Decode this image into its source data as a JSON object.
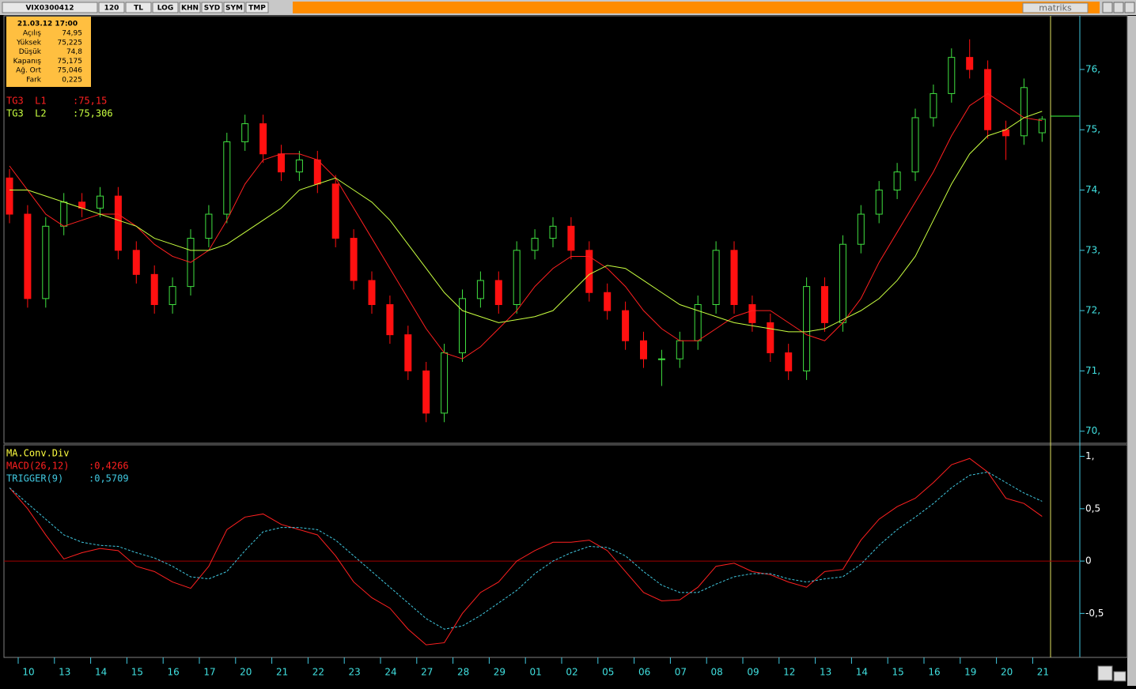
{
  "toolbar": {
    "items": [
      "VIX0300412",
      "120",
      "TL",
      "LOG",
      "KHN",
      "SYD",
      "SYM",
      "TMP"
    ],
    "brand": "matriks"
  },
  "info": {
    "date": "21.03.12 17:00",
    "rows": [
      [
        "Açılış",
        "74,95"
      ],
      [
        "Yüksek",
        "75,225"
      ],
      [
        "Düşük",
        "74,8"
      ],
      [
        "Kapanış",
        "75,175"
      ],
      [
        "Ağ. Ort",
        "75,046"
      ],
      [
        "Fark",
        "0,225"
      ]
    ]
  },
  "chart_data": [
    {
      "type": "candlestick",
      "legend": [
        {
          "name": "TG3  L1",
          "text": ":75,15",
          "color": "#ff2020"
        },
        {
          "name": "TG3  L2",
          "text": ":75,306",
          "color": "#c8ff40"
        }
      ],
      "categories": [
        "10",
        null,
        "13",
        null,
        "14",
        null,
        "15",
        null,
        "16",
        null,
        "17",
        null,
        "20",
        null,
        "21",
        null,
        "22",
        null,
        "23",
        null,
        "24",
        null,
        "27",
        null,
        "28",
        null,
        "29",
        null,
        "01",
        null,
        "02",
        null,
        "05",
        null,
        "06",
        null,
        "07",
        null,
        "08",
        null,
        "09",
        null,
        "12",
        null,
        "13",
        null,
        "14",
        null,
        "15",
        null,
        "16",
        null,
        "19",
        null,
        "20",
        null,
        "21",
        null
      ],
      "candles": [
        [
          74.2,
          74.35,
          73.45,
          73.6
        ],
        [
          73.6,
          73.75,
          72.05,
          72.2
        ],
        [
          72.2,
          73.55,
          72.05,
          73.4
        ],
        [
          73.4,
          73.95,
          73.25,
          73.8
        ],
        [
          73.8,
          73.95,
          73.55,
          73.7
        ],
        [
          73.7,
          74.05,
          73.55,
          73.9
        ],
        [
          73.9,
          74.05,
          72.85,
          73.0
        ],
        [
          73.0,
          73.15,
          72.45,
          72.6
        ],
        [
          72.6,
          72.75,
          71.95,
          72.1
        ],
        [
          72.1,
          72.55,
          71.95,
          72.4
        ],
        [
          72.4,
          73.35,
          72.25,
          73.2
        ],
        [
          73.2,
          73.75,
          73.05,
          73.6
        ],
        [
          73.6,
          74.95,
          73.45,
          74.8
        ],
        [
          74.8,
          75.25,
          74.65,
          75.1
        ],
        [
          75.1,
          75.25,
          74.45,
          74.6
        ],
        [
          74.6,
          74.75,
          74.15,
          74.3
        ],
        [
          74.3,
          74.65,
          74.15,
          74.5
        ],
        [
          74.5,
          74.65,
          73.95,
          74.1
        ],
        [
          74.1,
          74.25,
          73.05,
          73.2
        ],
        [
          73.2,
          73.35,
          72.35,
          72.5
        ],
        [
          72.5,
          72.65,
          71.95,
          72.1
        ],
        [
          72.1,
          72.25,
          71.45,
          71.6
        ],
        [
          71.6,
          71.75,
          70.85,
          71.0
        ],
        [
          71.0,
          71.15,
          70.15,
          70.3
        ],
        [
          70.3,
          71.45,
          70.15,
          71.3
        ],
        [
          71.3,
          72.35,
          71.15,
          72.2
        ],
        [
          72.2,
          72.65,
          72.05,
          72.5
        ],
        [
          72.5,
          72.65,
          71.95,
          72.1
        ],
        [
          72.1,
          73.15,
          71.95,
          73.0
        ],
        [
          73.0,
          73.35,
          72.85,
          73.2
        ],
        [
          73.2,
          73.55,
          73.05,
          73.4
        ],
        [
          73.4,
          73.55,
          72.85,
          73.0
        ],
        [
          73.0,
          73.15,
          72.15,
          72.3
        ],
        [
          72.3,
          72.45,
          71.85,
          72.0
        ],
        [
          72.0,
          72.15,
          71.35,
          71.5
        ],
        [
          71.5,
          71.65,
          71.05,
          71.2
        ],
        [
          71.2,
          71.35,
          70.75,
          71.2
        ],
        [
          71.2,
          71.65,
          71.05,
          71.5
        ],
        [
          71.5,
          72.25,
          71.35,
          72.1
        ],
        [
          72.1,
          73.15,
          71.95,
          73.0
        ],
        [
          73.0,
          73.15,
          71.95,
          72.1
        ],
        [
          72.1,
          72.25,
          71.65,
          71.8
        ],
        [
          71.8,
          71.95,
          71.15,
          71.3
        ],
        [
          71.3,
          71.45,
          70.85,
          71.0
        ],
        [
          71.0,
          72.55,
          70.85,
          72.4
        ],
        [
          72.4,
          72.55,
          71.65,
          71.8
        ],
        [
          71.8,
          73.25,
          71.65,
          73.1
        ],
        [
          73.1,
          73.75,
          72.95,
          73.6
        ],
        [
          73.6,
          74.15,
          73.45,
          74.0
        ],
        [
          74.0,
          74.45,
          73.85,
          74.3
        ],
        [
          74.3,
          75.35,
          74.15,
          75.2
        ],
        [
          75.2,
          75.75,
          75.05,
          75.6
        ],
        [
          75.6,
          76.35,
          75.45,
          76.2
        ],
        [
          76.2,
          76.5,
          75.85,
          76.0
        ],
        [
          76.0,
          76.15,
          74.85,
          75.0
        ],
        [
          75.0,
          75.15,
          74.5,
          74.9
        ],
        [
          74.9,
          75.85,
          74.75,
          75.7
        ],
        [
          74.95,
          75.225,
          74.8,
          75.175
        ]
      ],
      "up_color": "#40e040",
      "down_color": "#ff1010",
      "series": [
        {
          "name": "TG3  L1",
          "color": "#ff2020",
          "values": [
            74.4,
            74.0,
            73.6,
            73.4,
            73.5,
            73.6,
            73.6,
            73.4,
            73.1,
            72.9,
            72.8,
            73.0,
            73.5,
            74.1,
            74.5,
            74.6,
            74.6,
            74.5,
            74.2,
            73.7,
            73.2,
            72.7,
            72.2,
            71.7,
            71.3,
            71.2,
            71.4,
            71.7,
            72.0,
            72.4,
            72.7,
            72.9,
            72.9,
            72.7,
            72.4,
            72.0,
            71.7,
            71.5,
            71.5,
            71.7,
            71.9,
            72.0,
            72.0,
            71.8,
            71.6,
            71.5,
            71.8,
            72.2,
            72.8,
            73.3,
            73.8,
            74.3,
            74.9,
            75.4,
            75.6,
            75.4,
            75.2,
            75.15
          ]
        },
        {
          "name": "TG3  L2",
          "color": "#c8ff40",
          "values": [
            74.0,
            74.0,
            73.9,
            73.8,
            73.7,
            73.6,
            73.5,
            73.4,
            73.2,
            73.1,
            73.0,
            73.0,
            73.1,
            73.3,
            73.5,
            73.7,
            74.0,
            74.1,
            74.2,
            74.0,
            73.8,
            73.5,
            73.1,
            72.7,
            72.3,
            72.0,
            71.9,
            71.8,
            71.85,
            71.9,
            72.0,
            72.3,
            72.6,
            72.75,
            72.7,
            72.5,
            72.3,
            72.1,
            72.0,
            71.9,
            71.8,
            71.75,
            71.7,
            71.65,
            71.65,
            71.7,
            71.85,
            72.0,
            72.2,
            72.5,
            72.9,
            73.5,
            74.1,
            74.6,
            74.9,
            75.0,
            75.2,
            75.306
          ]
        }
      ],
      "ylim": [
        69.8,
        76.89
      ],
      "yticks": [
        {
          "value": 70,
          "label": "70,"
        },
        {
          "value": 71,
          "label": "71,"
        },
        {
          "value": 72,
          "label": "72,"
        },
        {
          "value": 73,
          "label": "73,"
        },
        {
          "value": 74,
          "label": "74,"
        },
        {
          "value": 75,
          "label": "75,"
        },
        {
          "value": 76,
          "label": "76,"
        }
      ]
    },
    {
      "type": "line",
      "title": "MA.Conv.Div",
      "legend": [
        {
          "name": "MACD(26,12)",
          "text": ":0,4266",
          "color": "#ff2020"
        },
        {
          "name": "TRIGGER(9)",
          "text": ":0,5709",
          "color": "#40c8e0"
        }
      ],
      "series": [
        {
          "name": "MACD(26,12)",
          "color": "#ff2020",
          "dashed": false,
          "values": [
            0.7,
            0.5,
            0.25,
            0.02,
            0.08,
            0.12,
            0.1,
            -0.05,
            -0.1,
            -0.2,
            -0.26,
            -0.05,
            0.3,
            0.42,
            0.45,
            0.35,
            0.3,
            0.25,
            0.05,
            -0.2,
            -0.35,
            -0.45,
            -0.65,
            -0.8,
            -0.78,
            -0.5,
            -0.3,
            -0.2,
            0.0,
            0.1,
            0.18,
            0.18,
            0.2,
            0.1,
            -0.1,
            -0.3,
            -0.38,
            -0.37,
            -0.25,
            -0.05,
            -0.02,
            -0.1,
            -0.13,
            -0.2,
            -0.25,
            -0.1,
            -0.08,
            0.2,
            0.4,
            0.52,
            0.6,
            0.75,
            0.92,
            0.98,
            0.85,
            0.6,
            0.55,
            0.4266
          ]
        },
        {
          "name": "TRIGGER(9)",
          "color": "#40c8e0",
          "dashed": true,
          "values": [
            0.7,
            0.55,
            0.4,
            0.25,
            0.18,
            0.15,
            0.14,
            0.08,
            0.03,
            -0.05,
            -0.15,
            -0.17,
            -0.1,
            0.1,
            0.28,
            0.32,
            0.32,
            0.3,
            0.2,
            0.05,
            -0.1,
            -0.25,
            -0.4,
            -0.55,
            -0.65,
            -0.62,
            -0.52,
            -0.4,
            -0.28,
            -0.12,
            0.0,
            0.08,
            0.14,
            0.13,
            0.05,
            -0.1,
            -0.23,
            -0.3,
            -0.3,
            -0.22,
            -0.15,
            -0.12,
            -0.12,
            -0.17,
            -0.2,
            -0.17,
            -0.15,
            -0.03,
            0.15,
            0.3,
            0.42,
            0.55,
            0.7,
            0.82,
            0.85,
            0.75,
            0.65,
            0.5709
          ]
        }
      ],
      "ylim": [
        -0.92,
        1.11
      ],
      "yticks": [
        {
          "value": -0.5,
          "label": "-0,5"
        },
        0,
        {
          "value": 0.5,
          "label": "0,5"
        },
        {
          "value": 1,
          "label": "1,"
        }
      ],
      "zero_line": true
    }
  ]
}
